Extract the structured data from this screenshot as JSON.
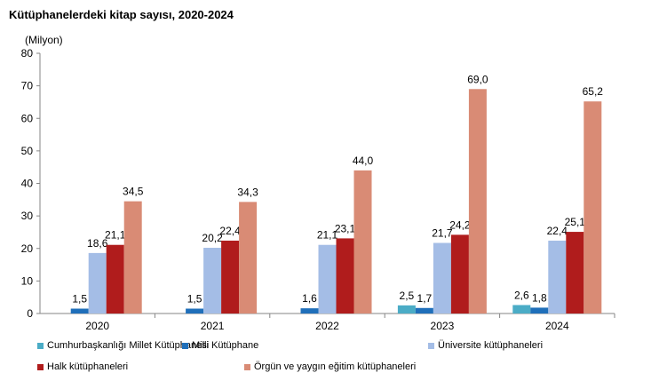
{
  "chart_data": {
    "type": "bar",
    "title": "Kütüphanelerdeki kitap sayısı, 2020-2024",
    "ylabel": "(Milyon)",
    "ylim": [
      0,
      80
    ],
    "yticks": [
      0,
      10,
      20,
      30,
      40,
      50,
      60,
      70,
      80
    ],
    "categories": [
      "2020",
      "2021",
      "2022",
      "2023",
      "2024"
    ],
    "grid": false,
    "legend": "bottom",
    "series": [
      {
        "name": "Cumhurbaşkanlığı Millet Kütüphanesi",
        "color": "#4bacc6",
        "values": [
          null,
          null,
          null,
          2.5,
          2.6
        ]
      },
      {
        "name": "Milli Kütüphane",
        "color": "#1f6fba",
        "values": [
          1.5,
          1.5,
          1.6,
          1.7,
          1.8
        ]
      },
      {
        "name": "Üniversite kütüphaneleri",
        "color": "#a4bde6",
        "values": [
          18.6,
          20.2,
          21.1,
          21.7,
          22.4
        ]
      },
      {
        "name": "Halk kütüphaneleri",
        "color": "#b01c1c",
        "values": [
          21.1,
          22.4,
          23.1,
          24.2,
          25.1
        ]
      },
      {
        "name": "Örgün ve yaygın eğitim kütüphaneleri",
        "color": "#d98b75",
        "values": [
          34.5,
          34.3,
          44.0,
          69.0,
          65.2
        ]
      }
    ]
  }
}
